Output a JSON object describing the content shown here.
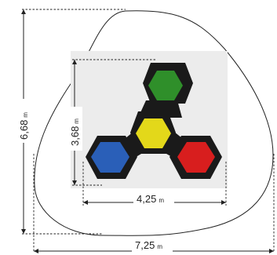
{
  "dimensions": {
    "overall_width": {
      "value": "7,25",
      "unit": "m"
    },
    "overall_height": {
      "value": "6,68",
      "unit": "m"
    },
    "play_width": {
      "value": "4,25",
      "unit": "m"
    },
    "play_height": {
      "value": "3,68",
      "unit": "m"
    }
  },
  "hexagons": [
    {
      "id": "top",
      "color": "#2f8f2a"
    },
    {
      "id": "center",
      "color": "#e3d81a"
    },
    {
      "id": "left",
      "color": "#2a5fb8"
    },
    {
      "id": "right",
      "color": "#d81e1e"
    }
  ]
}
